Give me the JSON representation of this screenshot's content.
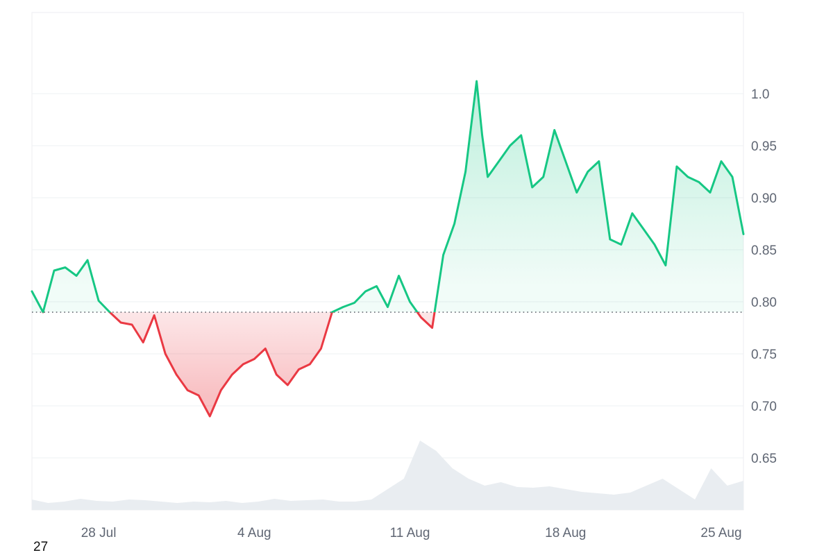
{
  "chart_data": {
    "type": "line",
    "title": "",
    "xlabel": "",
    "ylabel": "",
    "x_tick_labels": [
      "28 Jul",
      "4 Aug",
      "11 Aug",
      "18 Aug",
      "25 Aug"
    ],
    "y_tick_labels": [
      "0.65",
      "0.70",
      "0.75",
      "0.80",
      "0.85",
      "0.90",
      "0.95",
      "1.0"
    ],
    "x_range": [
      "2025-07-25",
      "2025-08-26"
    ],
    "ylim": [
      0.6,
      1.05
    ],
    "y_axis_position": "right",
    "grid": true,
    "baseline": 0.79,
    "baseline_style": "dotted",
    "colors": {
      "above": "#16c784",
      "below": "#ea3943",
      "volume": "#e9edf1",
      "grid": "#eef0f3"
    },
    "series": [
      {
        "x": [
          "2025-07-25",
          "2025-07-25T12:00",
          "2025-07-26",
          "2025-07-26T12:00",
          "2025-07-27",
          "2025-07-27T12:00",
          "2025-07-28",
          "2025-07-28T12:00",
          "2025-07-29",
          "2025-07-29T12:00",
          "2025-07-30",
          "2025-07-30T12:00",
          "2025-07-31",
          "2025-07-31T12:00",
          "2025-08-01",
          "2025-08-01T12:00",
          "2025-08-02",
          "2025-08-02T12:00",
          "2025-08-03",
          "2025-08-03T12:00",
          "2025-08-04",
          "2025-08-04T12:00",
          "2025-08-05",
          "2025-08-05T12:00",
          "2025-08-06",
          "2025-08-06T12:00",
          "2025-08-07",
          "2025-08-07T12:00",
          "2025-08-08",
          "2025-08-08T12:00",
          "2025-08-09",
          "2025-08-09T12:00",
          "2025-08-10",
          "2025-08-10T12:00",
          "2025-08-11",
          "2025-08-11T12:00",
          "2025-08-12",
          "2025-08-12T12:00",
          "2025-08-13",
          "2025-08-13T12:00",
          "2025-08-14",
          "2025-08-14T06:00",
          "2025-08-14T12:00",
          "2025-08-15",
          "2025-08-15T12:00",
          "2025-08-16",
          "2025-08-16T12:00",
          "2025-08-17",
          "2025-08-17T12:00",
          "2025-08-18",
          "2025-08-18T12:00",
          "2025-08-19",
          "2025-08-19T12:00",
          "2025-08-20",
          "2025-08-20T12:00",
          "2025-08-21",
          "2025-08-21T12:00",
          "2025-08-22",
          "2025-08-22T12:00",
          "2025-08-23",
          "2025-08-23T12:00",
          "2025-08-24",
          "2025-08-24T12:00",
          "2025-08-25",
          "2025-08-25T12:00",
          "2025-08-26"
        ],
        "values": [
          0.81,
          0.79,
          0.83,
          0.833,
          0.825,
          0.84,
          0.801,
          0.79,
          0.78,
          0.778,
          0.761,
          0.787,
          0.75,
          0.73,
          0.715,
          0.71,
          0.69,
          0.715,
          0.73,
          0.74,
          0.745,
          0.755,
          0.73,
          0.72,
          0.735,
          0.74,
          0.755,
          0.79,
          0.795,
          0.799,
          0.81,
          0.815,
          0.795,
          0.825,
          0.8,
          0.785,
          0.775,
          0.845,
          0.875,
          0.925,
          1.012,
          0.96,
          0.92,
          0.935,
          0.95,
          0.96,
          0.91,
          0.92,
          0.965,
          0.935,
          0.905,
          0.925,
          0.935,
          0.86,
          0.855,
          0.885,
          0.87,
          0.855,
          0.835,
          0.93,
          0.92,
          0.915,
          0.905,
          0.935,
          0.92,
          0.865
        ]
      }
    ],
    "volume": [
      0.15,
      0.1,
      0.12,
      0.16,
      0.13,
      0.12,
      0.15,
      0.14,
      0.12,
      0.1,
      0.12,
      0.11,
      0.13,
      0.1,
      0.12,
      0.16,
      0.13,
      0.14,
      0.15,
      0.12,
      0.12,
      0.15,
      0.3,
      0.45,
      1.0,
      0.85,
      0.6,
      0.45,
      0.35,
      0.4,
      0.33,
      0.32,
      0.34,
      0.3,
      0.26,
      0.24,
      0.22,
      0.25,
      0.35,
      0.45,
      0.3,
      0.15,
      0.6,
      0.35,
      0.42
    ]
  },
  "footer": {
    "corner_label": "27"
  }
}
